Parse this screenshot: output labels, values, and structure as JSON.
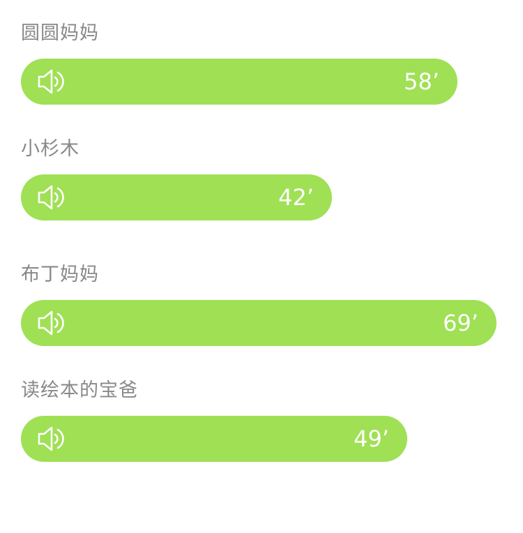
{
  "messages": [
    {
      "sender": "圆圆妈妈",
      "duration": "58’",
      "duration_seconds": 58
    },
    {
      "sender": "小杉木",
      "duration": "42’",
      "duration_seconds": 42
    },
    {
      "sender": "布丁妈妈",
      "duration": "69’",
      "duration_seconds": 69
    },
    {
      "sender": "读绘本的宝爸",
      "duration": "49’",
      "duration_seconds": 49
    }
  ],
  "icons": {
    "play": "speaker-icon"
  },
  "colors": {
    "bubble": "#9fe055",
    "sender_text": "#888888",
    "duration_text": "#ffffff",
    "background": "#ffffff"
  }
}
